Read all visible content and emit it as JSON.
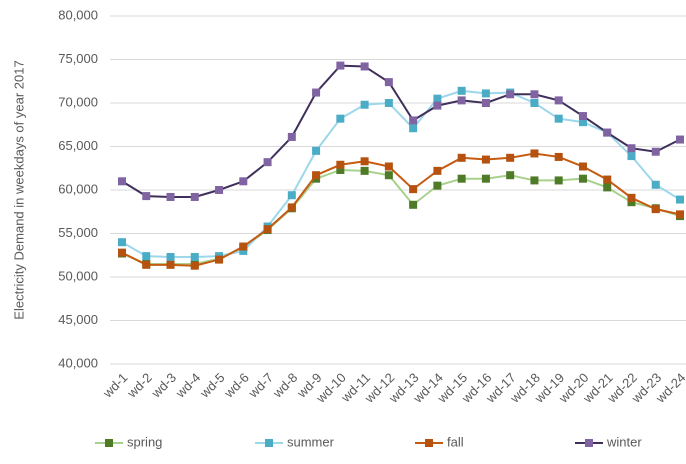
{
  "chart_data": {
    "type": "line",
    "y_label": "Electricity Demand in weekdays of year 2017",
    "categories": [
      "wd-1",
      "wd-2",
      "wd-3",
      "wd-4",
      "wd-5",
      "wd-6",
      "wd-7",
      "wd-8",
      "wd-9",
      "wd-10",
      "wd-11",
      "wd-12",
      "wd-13",
      "wd-14",
      "wd-15",
      "wd-16",
      "wd-17",
      "wd-18",
      "wd-19",
      "wd-20",
      "wd-21",
      "wd-22",
      "wd-23",
      "wd-24"
    ],
    "series": [
      {
        "name": "spring",
        "color": "#4f7a28",
        "line_color": "#a9d18e",
        "values": [
          52700,
          51500,
          51500,
          51500,
          52100,
          53400,
          55400,
          57900,
          61300,
          62300,
          62200,
          61700,
          58300,
          60500,
          61300,
          61300,
          61700,
          61100,
          61100,
          61300,
          60300,
          58600,
          57900,
          57000
        ]
      },
      {
        "name": "summer",
        "color": "#4bacc6",
        "line_color": "#9dd7ea",
        "values": [
          54000,
          52400,
          52300,
          52300,
          52400,
          53000,
          55800,
          59400,
          64500,
          68200,
          69800,
          70000,
          67100,
          70500,
          71400,
          71100,
          71200,
          70000,
          68200,
          67800,
          66600,
          63900,
          60600,
          58900
        ]
      },
      {
        "name": "fall",
        "color": "#b5520f",
        "line_color": "#c55a11",
        "values": [
          52800,
          51400,
          51400,
          51300,
          52000,
          53500,
          55500,
          58000,
          61700,
          62900,
          63300,
          62700,
          60100,
          62200,
          63700,
          63500,
          63700,
          64200,
          63800,
          62700,
          61200,
          59100,
          57800,
          57200
        ]
      },
      {
        "name": "winter",
        "color": "#8064a2",
        "line_color": "#3f2f5a",
        "values": [
          61000,
          59300,
          59200,
          59200,
          60000,
          61000,
          63200,
          66100,
          71200,
          74300,
          74200,
          72400,
          68000,
          69700,
          70300,
          70000,
          71000,
          71000,
          70300,
          68500,
          66600,
          64800,
          64400,
          65800
        ]
      }
    ],
    "ylim": [
      40000,
      80000
    ],
    "yticks": [
      {
        "value": 40000,
        "label": "40,000"
      },
      {
        "value": 45000,
        "label": "45,000"
      },
      {
        "value": 50000,
        "label": "50,000"
      },
      {
        "value": 55000,
        "label": "55,000"
      },
      {
        "value": 60000,
        "label": "60,000"
      },
      {
        "value": 65000,
        "label": "65,000"
      },
      {
        "value": 70000,
        "label": "70,000"
      },
      {
        "value": 75000,
        "label": "75,000"
      },
      {
        "value": 80000,
        "label": "80,000"
      }
    ],
    "grid": true,
    "legend": "bottom"
  }
}
